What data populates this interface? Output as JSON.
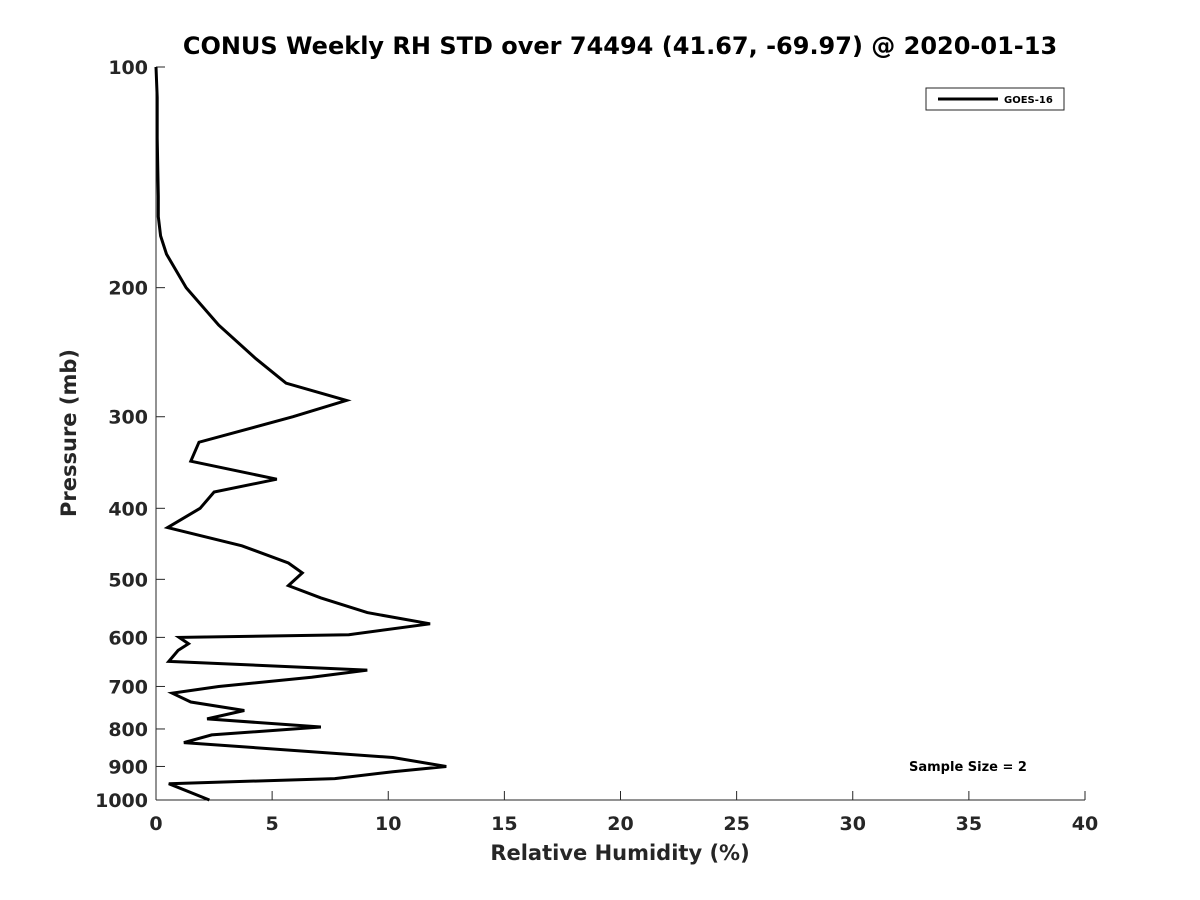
{
  "chart_data": {
    "type": "line",
    "title": "CONUS Weekly RH STD over 74494 (41.67, -69.97) @ 2020-01-13",
    "xlabel": "Relative Humidity (%)",
    "ylabel": "Pressure (mb)",
    "xlim": [
      0,
      40
    ],
    "ylim": [
      100,
      1000
    ],
    "yscale": "log",
    "yreversed": true,
    "grid": false,
    "x_ticks": [
      0,
      5,
      10,
      15,
      20,
      25,
      30,
      35,
      40
    ],
    "y_ticks": [
      100,
      200,
      300,
      400,
      500,
      600,
      700,
      800,
      900,
      1000
    ],
    "legend_position": "top-right",
    "annotation": "Sample Size = 2",
    "series": [
      {
        "name": "GOES-16",
        "color": "#000000",
        "points": [
          [
            0.0,
            100
          ],
          [
            0.05,
            110
          ],
          [
            0.05,
            125
          ],
          [
            0.1,
            150
          ],
          [
            0.1,
            160
          ],
          [
            0.2,
            170
          ],
          [
            0.45,
            180
          ],
          [
            1.3,
            200
          ],
          [
            2.7,
            225
          ],
          [
            4.3,
            250
          ],
          [
            5.6,
            270
          ],
          [
            8.2,
            285
          ],
          [
            5.9,
            300
          ],
          [
            1.85,
            325
          ],
          [
            1.5,
            345
          ],
          [
            5.2,
            365
          ],
          [
            2.5,
            380
          ],
          [
            1.9,
            400
          ],
          [
            0.5,
            425
          ],
          [
            3.7,
            450
          ],
          [
            5.7,
            475
          ],
          [
            6.3,
            490
          ],
          [
            5.7,
            510
          ],
          [
            7.1,
            530
          ],
          [
            9.1,
            555
          ],
          [
            11.8,
            575
          ],
          [
            8.3,
            595
          ],
          [
            1.0,
            600
          ],
          [
            1.4,
            612
          ],
          [
            0.95,
            625
          ],
          [
            0.55,
            647
          ],
          [
            9.1,
            665
          ],
          [
            6.7,
            680
          ],
          [
            2.7,
            700
          ],
          [
            0.7,
            715
          ],
          [
            1.5,
            735
          ],
          [
            3.8,
            755
          ],
          [
            2.2,
            775
          ],
          [
            7.1,
            795
          ],
          [
            2.4,
            815
          ],
          [
            1.2,
            835
          ],
          [
            10.2,
            875
          ],
          [
            12.5,
            900
          ],
          [
            10.2,
            915
          ],
          [
            7.7,
            935
          ],
          [
            0.55,
            950
          ],
          [
            2.3,
            1000
          ]
        ]
      }
    ]
  }
}
